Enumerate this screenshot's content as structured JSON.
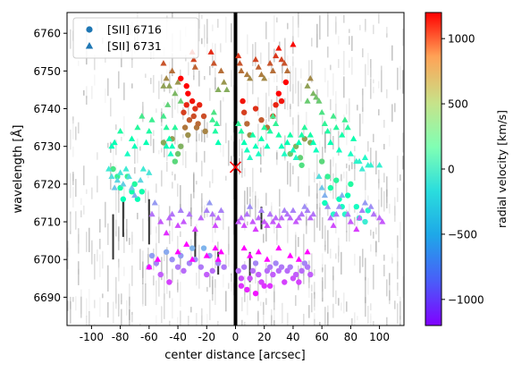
{
  "chart_data": {
    "type": "scatter",
    "xlabel": "center distance [arcsec]",
    "ylabel": "wavelength [Å]",
    "xlim": [
      -117,
      117
    ],
    "ylim": [
      6682.5,
      6765.5
    ],
    "xticks": [
      -100,
      -80,
      -60,
      -40,
      -20,
      0,
      20,
      40,
      60,
      80,
      100
    ],
    "yticks": [
      6690,
      6700,
      6710,
      6720,
      6730,
      6740,
      6750,
      6760
    ],
    "grid": false,
    "legend_position": "top-left",
    "center_marker": {
      "x": 0,
      "y": 6724.5,
      "symbol": "x",
      "color": "#ff0000"
    },
    "colorbar": {
      "label": "radial velocity [km/s]",
      "vmin": -1200,
      "vmax": 1200,
      "ticks": [
        -1000,
        -500,
        0,
        500,
        1000
      ],
      "tick_labels": [
        "−1000",
        "−500",
        "0",
        "500",
        "1000"
      ],
      "colormap": "rainbow"
    },
    "series": [
      {
        "name": "[SII] 6716",
        "marker": "circle",
        "points": [
          [
            -38,
            6748
          ],
          [
            -34,
            6746
          ],
          [
            -33,
            6744
          ],
          [
            -28,
            6740
          ],
          [
            -34,
            6741
          ],
          [
            -32,
            6737
          ],
          [
            -27,
            6735
          ],
          [
            -29,
            6738
          ],
          [
            -30,
            6742
          ],
          [
            -26,
            6736
          ],
          [
            -25,
            6741
          ],
          [
            -22,
            6738
          ],
          [
            -21,
            6734
          ],
          [
            -35,
            6735
          ],
          [
            -36,
            6739
          ],
          [
            -33,
            6733
          ],
          [
            5,
            6742
          ],
          [
            6,
            6739
          ],
          [
            8,
            6736
          ],
          [
            10,
            6733
          ],
          [
            14,
            6740
          ],
          [
            18,
            6737
          ],
          [
            22,
            6735
          ],
          [
            26,
            6738
          ],
          [
            28,
            6741
          ],
          [
            32,
            6742
          ],
          [
            30,
            6744
          ],
          [
            35,
            6747
          ],
          [
            -40,
            6728
          ],
          [
            -42,
            6726
          ],
          [
            -38,
            6730
          ],
          [
            -44,
            6732
          ],
          [
            -50,
            6731
          ],
          [
            38,
            6728
          ],
          [
            42,
            6730
          ],
          [
            45,
            6727
          ],
          [
            48,
            6732
          ],
          [
            52,
            6731
          ],
          [
            46,
            6725
          ],
          [
            -85,
            6724
          ],
          [
            -82,
            6722
          ],
          [
            -80,
            6719
          ],
          [
            -78,
            6716
          ],
          [
            -75,
            6722
          ],
          [
            -72,
            6718
          ],
          [
            -70,
            6720
          ],
          [
            -68,
            6716
          ],
          [
            -65,
            6718
          ],
          [
            60,
            6726
          ],
          [
            64,
            6722
          ],
          [
            66,
            6719
          ],
          [
            70,
            6721
          ],
          [
            72,
            6716
          ],
          [
            74,
            6714
          ],
          [
            76,
            6712
          ],
          [
            78,
            6717
          ],
          [
            80,
            6720
          ],
          [
            84,
            6714
          ],
          [
            86,
            6711
          ],
          [
            90,
            6710
          ],
          [
            92,
            6713
          ],
          [
            68,
            6712
          ],
          [
            62,
            6715
          ],
          [
            -60,
            6698
          ],
          [
            -58,
            6701
          ],
          [
            -55,
            6699
          ],
          [
            -48,
            6702
          ],
          [
            -44,
            6700
          ],
          [
            -40,
            6698
          ],
          [
            -36,
            6697
          ],
          [
            -32,
            6699
          ],
          [
            -28,
            6700
          ],
          [
            -24,
            6698
          ],
          [
            -20,
            6696
          ],
          [
            -16,
            6697
          ],
          [
            -12,
            6699
          ],
          [
            -8,
            6698
          ],
          [
            -18,
            6701
          ],
          [
            -22,
            6703
          ],
          [
            -30,
            6703
          ],
          [
            -38,
            6701
          ],
          [
            -52,
            6696
          ],
          [
            -46,
            6694
          ],
          [
            2,
            6697
          ],
          [
            4,
            6695
          ],
          [
            6,
            6698
          ],
          [
            8,
            6692
          ],
          [
            10,
            6695
          ],
          [
            12,
            6697
          ],
          [
            14,
            6699
          ],
          [
            16,
            6696
          ],
          [
            18,
            6694
          ],
          [
            20,
            6693
          ],
          [
            22,
            6697
          ],
          [
            24,
            6698
          ],
          [
            26,
            6696
          ],
          [
            28,
            6699
          ],
          [
            30,
            6697
          ],
          [
            32,
            6698
          ],
          [
            34,
            6694
          ],
          [
            36,
            6697
          ],
          [
            38,
            6698
          ],
          [
            40,
            6695
          ],
          [
            42,
            6696
          ],
          [
            44,
            6694
          ],
          [
            46,
            6697
          ],
          [
            48,
            6699
          ],
          [
            50,
            6698
          ],
          [
            52,
            6696
          ],
          [
            14,
            6691
          ],
          [
            24,
            6693
          ],
          [
            4,
            6693
          ]
        ]
      },
      {
        "name": "[SII] 6731",
        "marker": "triangle",
        "points": [
          [
            -50,
            6752
          ],
          [
            -48,
            6748
          ],
          [
            -46,
            6746
          ],
          [
            -44,
            6750
          ],
          [
            -42,
            6744
          ],
          [
            -40,
            6747
          ],
          [
            -38,
            6742
          ],
          [
            -50,
            6746
          ],
          [
            -47,
            6741
          ],
          [
            -30,
            6755
          ],
          [
            -29,
            6753
          ],
          [
            -28,
            6751
          ],
          [
            -17,
            6755
          ],
          [
            -15,
            6752
          ],
          [
            -10,
            6750
          ],
          [
            -8,
            6747
          ],
          [
            -6,
            6745
          ],
          [
            -12,
            6745
          ],
          [
            2,
            6754
          ],
          [
            3,
            6752
          ],
          [
            4,
            6750
          ],
          [
            8,
            6749
          ],
          [
            10,
            6748
          ],
          [
            14,
            6753
          ],
          [
            16,
            6751
          ],
          [
            18,
            6749
          ],
          [
            20,
            6748
          ],
          [
            24,
            6752
          ],
          [
            26,
            6750
          ],
          [
            28,
            6754
          ],
          [
            30,
            6756
          ],
          [
            32,
            6753
          ],
          [
            34,
            6752
          ],
          [
            36,
            6750
          ],
          [
            40,
            6757
          ],
          [
            50,
            6746
          ],
          [
            52,
            6748
          ],
          [
            54,
            6744
          ],
          [
            56,
            6743
          ],
          [
            58,
            6742
          ],
          [
            50,
            6742
          ],
          [
            -50,
            6738
          ],
          [
            -48,
            6735
          ],
          [
            -46,
            6732
          ],
          [
            -44,
            6730
          ],
          [
            -42,
            6735
          ],
          [
            -45,
            6728
          ],
          [
            -16,
            6737
          ],
          [
            -14,
            6734
          ],
          [
            -12,
            6731
          ],
          [
            -13,
            6736
          ],
          [
            -15,
            6739
          ],
          [
            -48,
            6730
          ],
          [
            2,
            6736
          ],
          [
            4,
            6734
          ],
          [
            6,
            6731
          ],
          [
            8,
            6729
          ],
          [
            10,
            6727
          ],
          [
            12,
            6733
          ],
          [
            14,
            6730
          ],
          [
            16,
            6728
          ],
          [
            18,
            6732
          ],
          [
            20,
            6735
          ],
          [
            22,
            6730
          ],
          [
            24,
            6734
          ],
          [
            26,
            6738
          ],
          [
            28,
            6736
          ],
          [
            30,
            6733
          ],
          [
            32,
            6730
          ],
          [
            34,
            6728
          ],
          [
            36,
            6731
          ],
          [
            38,
            6733
          ],
          [
            40,
            6729
          ],
          [
            42,
            6727
          ],
          [
            44,
            6731
          ],
          [
            46,
            6733
          ],
          [
            48,
            6735
          ],
          [
            -58,
            6737
          ],
          [
            -60,
            6734
          ],
          [
            -62,
            6731
          ],
          [
            -65,
            6738
          ],
          [
            -68,
            6735
          ],
          [
            -70,
            6730
          ],
          [
            -72,
            6732
          ],
          [
            -75,
            6728
          ],
          [
            -80,
            6734
          ],
          [
            -84,
            6731
          ],
          [
            -86,
            6730
          ],
          [
            60,
            6739
          ],
          [
            62,
            6736
          ],
          [
            64,
            6734
          ],
          [
            66,
            6731
          ],
          [
            68,
            6738
          ],
          [
            70,
            6735
          ],
          [
            72,
            6729
          ],
          [
            74,
            6733
          ],
          [
            76,
            6737
          ],
          [
            78,
            6735
          ],
          [
            80,
            6728
          ],
          [
            82,
            6732
          ],
          [
            84,
            6726
          ],
          [
            86,
            6726
          ],
          [
            88,
            6724
          ],
          [
            90,
            6727
          ],
          [
            92,
            6725
          ],
          [
            94,
            6725
          ],
          [
            100,
            6725
          ],
          [
            54,
            6731
          ],
          [
            56,
            6729
          ],
          [
            52,
            6733
          ],
          [
            -88,
            6724
          ],
          [
            -86,
            6722
          ],
          [
            -84,
            6719
          ],
          [
            -82,
            6721
          ],
          [
            -80,
            6723
          ],
          [
            -78,
            6720
          ],
          [
            -76,
            6724
          ],
          [
            -74,
            6722
          ],
          [
            -72,
            6719
          ],
          [
            -70,
            6717
          ],
          [
            -66,
            6721
          ],
          [
            -64,
            6724
          ],
          [
            -60,
            6723
          ],
          [
            58,
            6722
          ],
          [
            60,
            6719
          ],
          [
            62,
            6717
          ],
          [
            64,
            6714
          ],
          [
            66,
            6711
          ],
          [
            68,
            6709
          ],
          [
            70,
            6712
          ],
          [
            72,
            6714
          ],
          [
            74,
            6717
          ],
          [
            78,
            6712
          ],
          [
            80,
            6710
          ],
          [
            84,
            6708
          ],
          [
            86,
            6711
          ],
          [
            90,
            6715
          ],
          [
            94,
            6714
          ],
          [
            100,
            6711
          ],
          [
            102,
            6710
          ],
          [
            96,
            6712
          ],
          [
            88,
            6713
          ],
          [
            -58,
            6712
          ],
          [
            -56,
            6715
          ],
          [
            -52,
            6710
          ],
          [
            -48,
            6707
          ],
          [
            -46,
            6711
          ],
          [
            -44,
            6712
          ],
          [
            -40,
            6709
          ],
          [
            -38,
            6713
          ],
          [
            -36,
            6710
          ],
          [
            -32,
            6712
          ],
          [
            -28,
            6708
          ],
          [
            -24,
            6711
          ],
          [
            -20,
            6713
          ],
          [
            -18,
            6715
          ],
          [
            -16,
            6712
          ],
          [
            -14,
            6709
          ],
          [
            -12,
            6711
          ],
          [
            -10,
            6713
          ],
          [
            2,
            6710
          ],
          [
            4,
            6711
          ],
          [
            6,
            6709
          ],
          [
            8,
            6712
          ],
          [
            10,
            6714
          ],
          [
            12,
            6710
          ],
          [
            14,
            6708
          ],
          [
            16,
            6711
          ],
          [
            18,
            6713
          ],
          [
            20,
            6710
          ],
          [
            22,
            6709
          ],
          [
            24,
            6712
          ],
          [
            26,
            6710
          ],
          [
            28,
            6711
          ],
          [
            30,
            6709
          ],
          [
            32,
            6711
          ],
          [
            34,
            6713
          ],
          [
            36,
            6712
          ],
          [
            38,
            6711
          ],
          [
            40,
            6713
          ],
          [
            42,
            6710
          ],
          [
            44,
            6711
          ],
          [
            46,
            6712
          ],
          [
            48,
            6714
          ],
          [
            50,
            6713
          ],
          [
            52,
            6711
          ],
          [
            54,
            6712
          ],
          [
            -60,
            6698
          ],
          [
            -54,
            6700
          ],
          [
            -40,
            6702
          ],
          [
            -34,
            6704
          ],
          [
            -30,
            6700
          ],
          [
            -20,
            6701
          ],
          [
            -14,
            6703
          ],
          [
            -12,
            6700
          ],
          [
            -10,
            6702
          ],
          [
            6,
            6703
          ],
          [
            10,
            6701
          ],
          [
            16,
            6702
          ],
          [
            22,
            6700
          ],
          [
            30,
            6703
          ],
          [
            38,
            6701
          ],
          [
            44,
            6700
          ],
          [
            50,
            6702
          ]
        ]
      }
    ]
  }
}
